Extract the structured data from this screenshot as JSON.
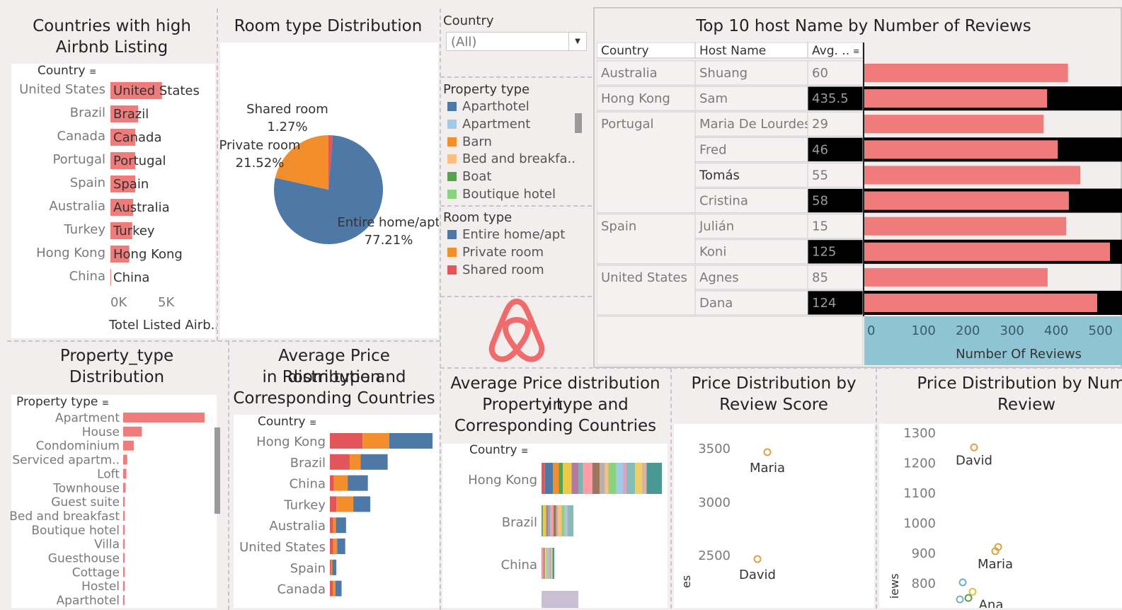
{
  "colors": {
    "salmon": "#ef7b7b",
    "blue": "#4e79a7",
    "orange": "#f28e2b",
    "red": "#e15759",
    "teal_axis": "#8fc4d4",
    "black": "#000000"
  },
  "countries_panel": {
    "title_line1": "Countries with high",
    "title_line2": "Airbnb Listing",
    "field_header": "Country",
    "axis_label": "Totel Listed Airb..",
    "ticks": [
      "0K",
      "5K"
    ]
  },
  "room_type_panel": {
    "title": "Room type Distribution"
  },
  "property_type_panel": {
    "title_line1": "Property_type",
    "title_line2": "Distribution",
    "field_header": "Property type"
  },
  "avg_room_panel": {
    "title_line1": "Average Price distribution",
    "title_line2": "in Room type and",
    "title_line3": "Corresponding Countries",
    "field_header": "Country"
  },
  "avg_prop_panel": {
    "title_line1": "Average Price distribution in",
    "title_line2": "Property type and",
    "title_line3": "Corresponding Countries",
    "field_header": "Country"
  },
  "filters": {
    "country_label": "Country",
    "country_value": "(All)",
    "property_type_label": "Property type",
    "property_types": [
      {
        "name": "Aparthotel",
        "color": "#4e79a7"
      },
      {
        "name": "Apartment",
        "color": "#a0cbe8"
      },
      {
        "name": "Barn",
        "color": "#f28e2b"
      },
      {
        "name": "Bed and breakfa..",
        "color": "#ffbe7d"
      },
      {
        "name": "Boat",
        "color": "#59a14f"
      },
      {
        "name": "Boutique hotel",
        "color": "#8cd17d"
      }
    ],
    "room_type_label": "Room type",
    "room_types": [
      {
        "name": "Entire home/apt",
        "color": "#4e79a7"
      },
      {
        "name": "Private room",
        "color": "#f28e2b"
      },
      {
        "name": "Shared room",
        "color": "#e15759"
      }
    ]
  },
  "top_hosts_panel": {
    "title": "Top 10  host Name by Number of Reviews",
    "col_country": "Country",
    "col_host": "Host Name",
    "col_avg": "Avg. ..",
    "axis_label": "Number Of Reviews"
  },
  "review_score_panel": {
    "title_line1": "Price Distribution by",
    "title_line2": "Review Score",
    "yaxis_partial": "es"
  },
  "review_count_panel": {
    "title_line1": "Price Distribution by Numb",
    "title_line2": "Review",
    "yaxis_partial": "iews"
  },
  "chart_data": [
    {
      "type": "bar",
      "title": "Countries with high Airbnb Listing",
      "xlabel": "Totel Listed Airb..",
      "ylabel": "Country",
      "categories": [
        "United States",
        "Brazil",
        "Canada",
        "Portugal",
        "Spain",
        "Australia",
        "Turkey",
        "Hong Kong",
        "China"
      ],
      "values": [
        5200,
        2800,
        2500,
        2500,
        2500,
        2300,
        2200,
        1900,
        50
      ],
      "xlim": [
        0,
        9000
      ]
    },
    {
      "type": "pie",
      "title": "Room type Distribution",
      "categories": [
        "Entire home/apt",
        "Private room",
        "Shared room"
      ],
      "values": [
        77.21,
        21.52,
        1.27
      ],
      "labels": [
        "77.21%",
        "21.52%",
        "1.27%"
      ]
    },
    {
      "type": "bar",
      "title": "Property_type Distribution",
      "ylabel": "Property type",
      "categories": [
        "Apartment",
        "House",
        "Condominium",
        "Serviced apartm..",
        "Loft",
        "Townhouse",
        "Guest suite",
        "Bed and breakfast",
        "Boutique hotel",
        "Villa",
        "Guesthouse",
        "Cottage",
        "Hostel",
        "Aparthotel"
      ],
      "values": [
        100,
        23,
        13,
        5,
        4,
        3,
        2,
        2,
        2,
        2,
        2,
        2,
        2,
        1
      ]
    },
    {
      "type": "bar",
      "stacked": true,
      "title": "Average Price distribution in Room type and Corresponding Countries",
      "ylabel": "Country",
      "categories": [
        "Hong Kong",
        "Brazil",
        "China",
        "Turkey",
        "Australia",
        "United States",
        "Spain",
        "Canada"
      ],
      "series": [
        {
          "name": "Shared room",
          "values": [
            810,
            490,
            100,
            160,
            80,
            80,
            30,
            70
          ]
        },
        {
          "name": "Private room",
          "values": [
            660,
            270,
            340,
            420,
            70,
            100,
            30,
            70
          ]
        },
        {
          "name": "Entire home/apt",
          "values": [
            1070,
            670,
            500,
            420,
            250,
            200,
            100,
            150
          ]
        }
      ]
    },
    {
      "type": "bar",
      "stacked": true,
      "title": "Average Price distribution in Property type and Corresponding Countries",
      "ylabel": "Country",
      "categories": [
        "Hong Kong",
        "Brazil",
        "China"
      ],
      "values": [
        170,
        45,
        18
      ]
    },
    {
      "type": "bar",
      "title": "Top 10  host Name by Number of Reviews",
      "xlabel": "Number Of Reviews",
      "ticks": [
        "0",
        "100",
        "200",
        "300",
        "400",
        "500"
      ],
      "xlim": [
        0,
        550
      ],
      "rows": [
        {
          "country": "Australia",
          "host": "Shuang",
          "avg": "60",
          "reviews": 460
        },
        {
          "country": "Hong Kong",
          "host": "Sam",
          "avg": "435.5",
          "reviews": 413
        },
        {
          "country": "Portugal",
          "host": "Maria De Lourdes",
          "avg": "29",
          "reviews": 405
        },
        {
          "country": "",
          "host": "Fred",
          "avg": "46",
          "reviews": 437
        },
        {
          "country": "",
          "host": "Tomás",
          "avg": "55",
          "reviews": 488
        },
        {
          "country": "",
          "host": "Cristina",
          "avg": "58",
          "reviews": 462
        },
        {
          "country": "Spain",
          "host": "Julián",
          "avg": "15",
          "reviews": 456
        },
        {
          "country": "",
          "host": "Koni",
          "avg": "125",
          "reviews": 555
        },
        {
          "country": "United States",
          "host": "Agnes",
          "avg": "85",
          "reviews": 414
        },
        {
          "country": "",
          "host": "Dana",
          "avg": "124",
          "reviews": 526
        }
      ]
    },
    {
      "type": "scatter",
      "title": "Price Distribution by Review Score",
      "yticks": [
        "3500",
        "3000",
        "2500"
      ],
      "points": [
        {
          "label": "Maria",
          "y": 3460
        },
        {
          "label": "David",
          "y": 2460
        }
      ]
    },
    {
      "type": "scatter",
      "title": "Price Distribution by Number of Review",
      "yticks": [
        "1300",
        "1200",
        "1100",
        "1000",
        "900",
        "800"
      ],
      "points": [
        {
          "label": "David",
          "y": 1250
        },
        {
          "label": "Maria",
          "y": 905
        },
        {
          "label": "Ana",
          "y": 770
        }
      ]
    }
  ]
}
